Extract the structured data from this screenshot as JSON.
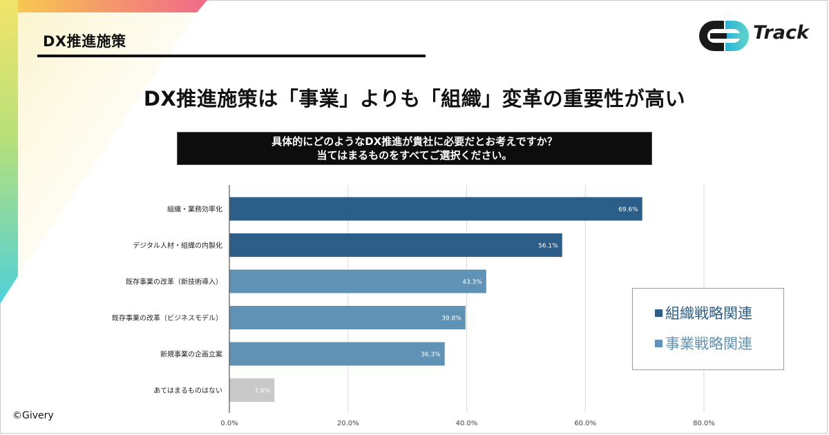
{
  "header": {
    "section_label": "DX推進施策",
    "logo_text": "Track"
  },
  "headline": "DX推進施策は「事業」よりも「組織」変革の重要性が高い",
  "question": {
    "line1": "具体的にどのようなDX推進が貴社に必要だとお考えですか？",
    "line2": "当てはまるものをすべてご選択ください。"
  },
  "legend": {
    "items": [
      {
        "label": "組織戦略関連",
        "color": "#2b5f8a"
      },
      {
        "label": "事業戦略関連",
        "color": "#5f92b5"
      }
    ]
  },
  "copyright": "©Givery",
  "colors": {
    "org": "#2b5f8a",
    "biz": "#5f92b5",
    "none": "#c9c9c9"
  },
  "chart_data": {
    "type": "bar",
    "orientation": "horizontal",
    "categories": [
      "組織・業務効率化",
      "デジタル人材・組織の内製化",
      "既存事業の改革（新技術導入）",
      "既存事業の改革（ビジネスモデル）",
      "新規事業の企画立案",
      "あてはまるものはない"
    ],
    "values": [
      69.6,
      56.1,
      43.3,
      39.8,
      36.3,
      7.6
    ],
    "value_labels": [
      "69.6%",
      "56.1%",
      "43.3%",
      "39.8%",
      "36.3%",
      "7.6%"
    ],
    "groups": [
      "org",
      "org",
      "biz",
      "biz",
      "biz",
      "none"
    ],
    "xlim": [
      0,
      80
    ],
    "ticks": [
      0,
      20,
      40,
      60,
      80
    ],
    "tick_labels": [
      "0.0%",
      "20.0%",
      "40.0%",
      "60.0%",
      "80.0%"
    ],
    "grid": true,
    "legend_position": "right"
  }
}
